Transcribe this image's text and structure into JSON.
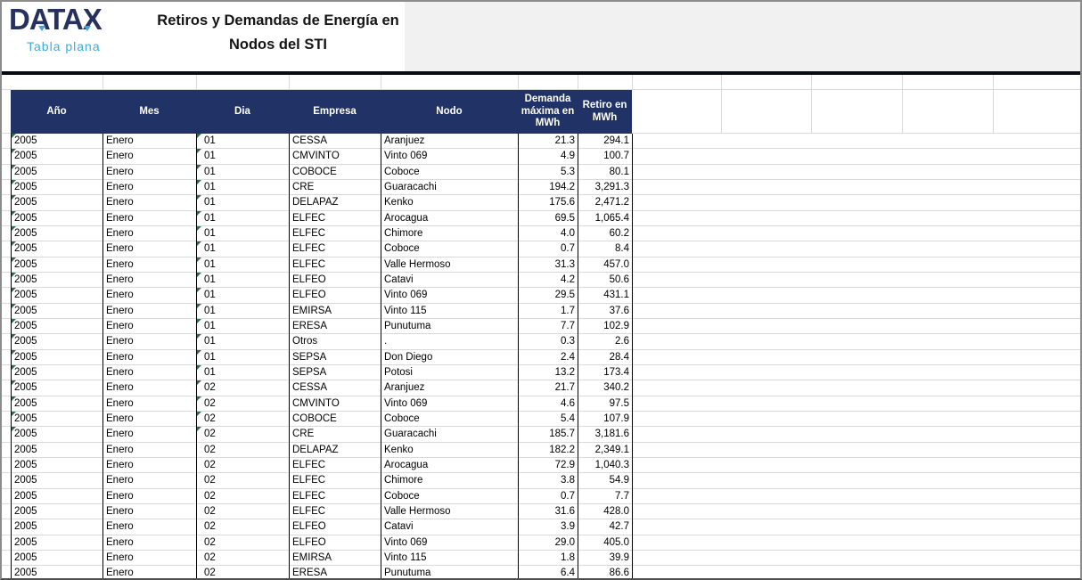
{
  "logo": {
    "name": "DATAX",
    "subtitle": "Tabla plana",
    "brand_color": "#27315e",
    "accent_color": "#3fa9dc"
  },
  "title": {
    "line1": "Retiros y Demandas de Energía en",
    "line2": "Nodos del STI"
  },
  "table": {
    "header_bg": "#213366",
    "flag_color": "#217346",
    "flagged_row_count": 20,
    "columns": [
      {
        "key": "ano",
        "label": "Año",
        "align": "left"
      },
      {
        "key": "mes",
        "label": "Mes",
        "align": "left"
      },
      {
        "key": "dia",
        "label": "Dia",
        "align": "left"
      },
      {
        "key": "empresa",
        "label": "Empresa",
        "align": "left"
      },
      {
        "key": "nodo",
        "label": "Nodo",
        "align": "left"
      },
      {
        "key": "demanda",
        "label": "Demanda máxima en MWh",
        "align": "right"
      },
      {
        "key": "retiro",
        "label": "Retiro en MWh",
        "align": "right"
      }
    ],
    "rows": [
      [
        "2005",
        "Enero",
        "01",
        "CESSA",
        "Aranjuez",
        "21.3",
        "294.1"
      ],
      [
        "2005",
        "Enero",
        "01",
        "CMVINTO",
        "Vinto 069",
        "4.9",
        "100.7"
      ],
      [
        "2005",
        "Enero",
        "01",
        "COBOCE",
        "Coboce",
        "5.3",
        "80.1"
      ],
      [
        "2005",
        "Enero",
        "01",
        "CRE",
        "Guaracachi",
        "194.2",
        "3,291.3"
      ],
      [
        "2005",
        "Enero",
        "01",
        "DELAPAZ",
        "Kenko",
        "175.6",
        "2,471.2"
      ],
      [
        "2005",
        "Enero",
        "01",
        "ELFEC",
        "Arocagua",
        "69.5",
        "1,065.4"
      ],
      [
        "2005",
        "Enero",
        "01",
        "ELFEC",
        "Chimore",
        "4.0",
        "60.2"
      ],
      [
        "2005",
        "Enero",
        "01",
        "ELFEC",
        "Coboce",
        "0.7",
        "8.4"
      ],
      [
        "2005",
        "Enero",
        "01",
        "ELFEC",
        "Valle Hermoso",
        "31.3",
        "457.0"
      ],
      [
        "2005",
        "Enero",
        "01",
        "ELFEO",
        "Catavi",
        "4.2",
        "50.6"
      ],
      [
        "2005",
        "Enero",
        "01",
        "ELFEO",
        "Vinto 069",
        "29.5",
        "431.1"
      ],
      [
        "2005",
        "Enero",
        "01",
        "EMIRSA",
        "Vinto 115",
        "1.7",
        "37.6"
      ],
      [
        "2005",
        "Enero",
        "01",
        "ERESA",
        "Punutuma",
        "7.7",
        "102.9"
      ],
      [
        "2005",
        "Enero",
        "01",
        "Otros",
        ".",
        "0.3",
        "2.6"
      ],
      [
        "2005",
        "Enero",
        "01",
        "SEPSA",
        "Don Diego",
        "2.4",
        "28.4"
      ],
      [
        "2005",
        "Enero",
        "01",
        "SEPSA",
        "Potosi",
        "13.2",
        "173.4"
      ],
      [
        "2005",
        "Enero",
        "02",
        "CESSA",
        "Aranjuez",
        "21.7",
        "340.2"
      ],
      [
        "2005",
        "Enero",
        "02",
        "CMVINTO",
        "Vinto 069",
        "4.6",
        "97.5"
      ],
      [
        "2005",
        "Enero",
        "02",
        "COBOCE",
        "Coboce",
        "5.4",
        "107.9"
      ],
      [
        "2005",
        "Enero",
        "02",
        "CRE",
        "Guaracachi",
        "185.7",
        "3,181.6"
      ],
      [
        "2005",
        "Enero",
        "02",
        "DELAPAZ",
        "Kenko",
        "182.2",
        "2,349.1"
      ],
      [
        "2005",
        "Enero",
        "02",
        "ELFEC",
        "Arocagua",
        "72.9",
        "1,040.3"
      ],
      [
        "2005",
        "Enero",
        "02",
        "ELFEC",
        "Chimore",
        "3.8",
        "54.9"
      ],
      [
        "2005",
        "Enero",
        "02",
        "ELFEC",
        "Coboce",
        "0.7",
        "7.7"
      ],
      [
        "2005",
        "Enero",
        "02",
        "ELFEC",
        "Valle Hermoso",
        "31.6",
        "428.0"
      ],
      [
        "2005",
        "Enero",
        "02",
        "ELFEO",
        "Catavi",
        "3.9",
        "42.7"
      ],
      [
        "2005",
        "Enero",
        "02",
        "ELFEO",
        "Vinto 069",
        "29.0",
        "405.0"
      ],
      [
        "2005",
        "Enero",
        "02",
        "EMIRSA",
        "Vinto 115",
        "1.8",
        "39.9"
      ],
      [
        "2005",
        "Enero",
        "02",
        "ERESA",
        "Punutuma",
        "6.4",
        "86.6"
      ]
    ]
  }
}
